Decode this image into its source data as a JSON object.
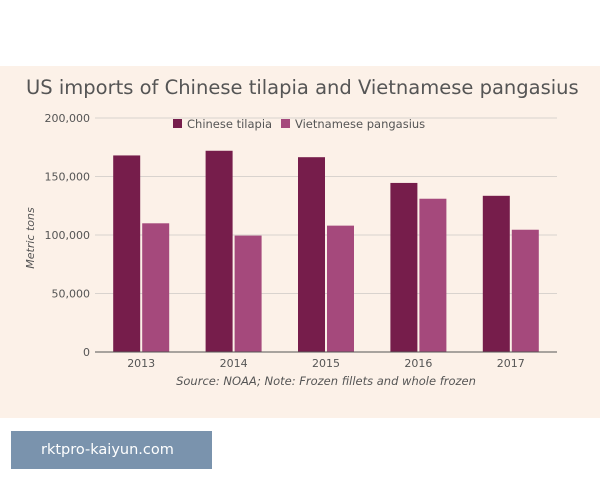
{
  "page": {
    "watermark": "rktpro-kaiyun.com"
  },
  "chart_data": {
    "type": "bar",
    "title": "US imports of Chinese tilapia and Vietnamese pangasius",
    "ylabel": "Metric tons",
    "xlabel": "",
    "source_note": "Source: NOAA; Note: Frozen fillets and whole frozen",
    "categories": [
      "2013",
      "2014",
      "2015",
      "2016",
      "2017"
    ],
    "ylim": [
      0,
      200000
    ],
    "yticks": [
      0,
      50000,
      100000,
      150000,
      200000
    ],
    "ytick_labels": [
      "0",
      "50,000",
      "100,000",
      "150,000",
      "200,000"
    ],
    "series": [
      {
        "name": "Chinese tilapia",
        "color": "#761d4b",
        "values": [
          168000,
          172000,
          166500,
          144500,
          133500
        ]
      },
      {
        "name": "Vietnamese pangasius",
        "color": "#a5497c",
        "values": [
          110000,
          99500,
          108000,
          131000,
          104500
        ]
      }
    ],
    "grid": true,
    "legend_position": "top-center"
  }
}
